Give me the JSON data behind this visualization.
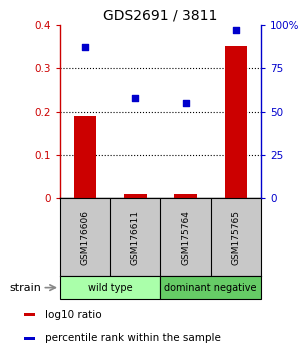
{
  "title": "GDS2691 / 3811",
  "samples": [
    "GSM176606",
    "GSM176611",
    "GSM175764",
    "GSM175765"
  ],
  "log10_ratio": [
    0.19,
    0.01,
    0.01,
    0.35
  ],
  "percentile_rank": [
    87,
    58,
    55,
    97
  ],
  "bar_color": "#cc0000",
  "scatter_color": "#0000cc",
  "ylim_left": [
    0,
    0.4
  ],
  "ylim_right": [
    0,
    100
  ],
  "yticks_left": [
    0,
    0.1,
    0.2,
    0.3,
    0.4
  ],
  "yticks_right": [
    0,
    25,
    50,
    75,
    100
  ],
  "ytick_labels_left": [
    "0",
    "0.1",
    "0.2",
    "0.3",
    "0.4"
  ],
  "ytick_labels_right": [
    "0",
    "25",
    "50",
    "75",
    "100%"
  ],
  "groups": [
    {
      "label": "wild type",
      "color": "#aaffaa",
      "span": [
        0,
        2
      ]
    },
    {
      "label": "dominant negative",
      "color": "#66cc66",
      "span": [
        2,
        4
      ]
    }
  ],
  "strain_label": "strain",
  "legend_red": "log10 ratio",
  "legend_blue": "percentile rank within the sample",
  "bg_color": "#ffffff",
  "sample_box_color": "#c8c8c8",
  "bar_width": 0.45
}
